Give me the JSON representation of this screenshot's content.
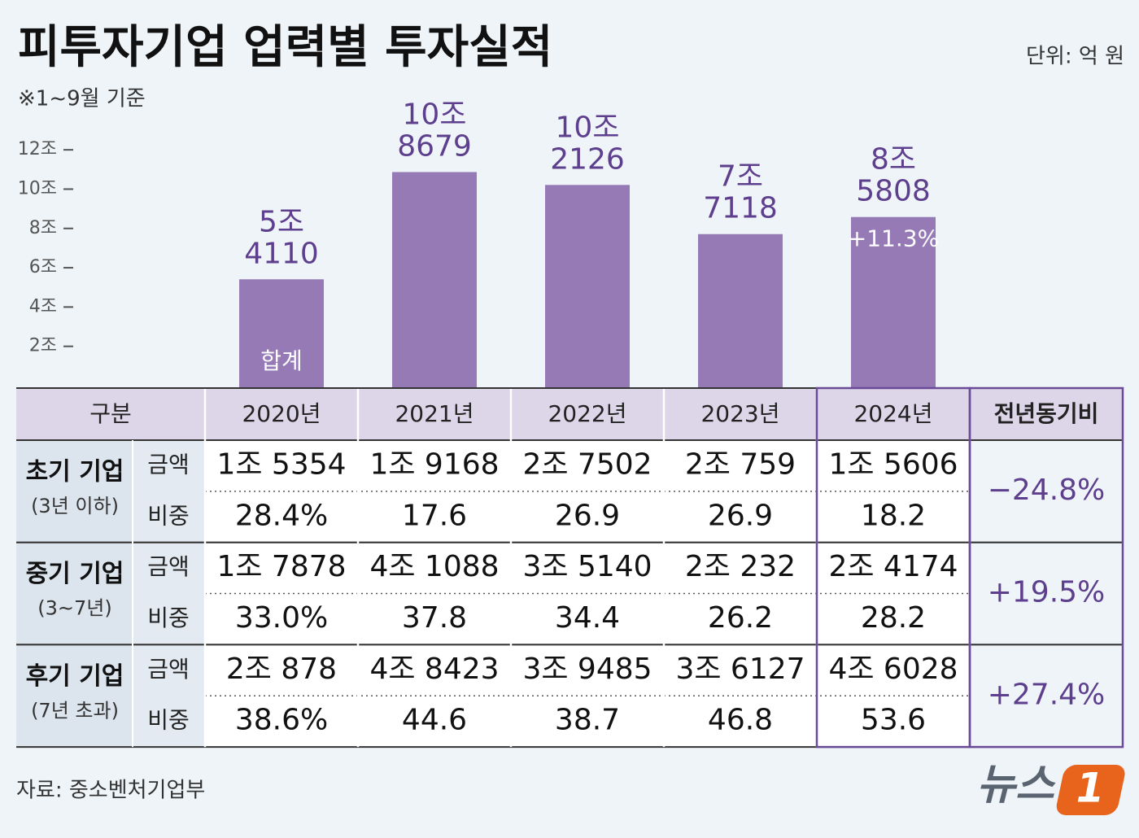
{
  "chart_data": {
    "type": "bar",
    "title": "피투자기업 업력별 투자실적",
    "unit": "단위: 억 원",
    "note": "※1~9월 기준",
    "categories": [
      "2020년",
      "2021년",
      "2022년",
      "2023년",
      "2024년"
    ],
    "values": [
      54110,
      108679,
      102126,
      77118,
      85808
    ],
    "value_labels": [
      [
        "5조",
        "4110"
      ],
      [
        "10조",
        "8679"
      ],
      [
        "10조",
        "2126"
      ],
      [
        "7조",
        "7118"
      ],
      [
        "8조",
        "5808"
      ]
    ],
    "color": "#957ab6",
    "ylim": [
      0,
      130000
    ],
    "yticks": [
      {
        "value": 20000,
        "label": "2조"
      },
      {
        "value": 40000,
        "label": "4조"
      },
      {
        "value": 60000,
        "label": "6조"
      },
      {
        "value": 80000,
        "label": "8조"
      },
      {
        "value": 100000,
        "label": "10조"
      },
      {
        "value": 120000,
        "label": "12조"
      }
    ],
    "annotations": {
      "total_label": "합계",
      "change_label": "+11.3%"
    }
  },
  "table": {
    "header": {
      "first": "구분",
      "last": "전년동기비"
    },
    "groups": [
      {
        "name": "초기 기업",
        "sub": "(3년 이하)",
        "change": "−24.8%",
        "rows": [
          {
            "label": "금액",
            "cells": [
              "1조 5354",
              "1조 9168",
              "2조 7502",
              "2조 759",
              "1조 5606"
            ]
          },
          {
            "label": "비중",
            "cells": [
              "28.4%",
              "17.6",
              "26.9",
              "26.9",
              "18.2"
            ]
          }
        ]
      },
      {
        "name": "중기 기업",
        "sub": "(3~7년)",
        "change": "+19.5%",
        "rows": [
          {
            "label": "금액",
            "cells": [
              "1조 7878",
              "4조 1088",
              "3조 5140",
              "2조 232",
              "2조 4174"
            ]
          },
          {
            "label": "비중",
            "cells": [
              "33.0%",
              "37.8",
              "34.4",
              "26.2",
              "28.2"
            ]
          }
        ]
      },
      {
        "name": "후기 기업",
        "sub": "(7년 초과)",
        "change": "+27.4%",
        "rows": [
          {
            "label": "금액",
            "cells": [
              "2조 878",
              "4조 8423",
              "3조 9485",
              "3조 6127",
              "4조 6028"
            ]
          },
          {
            "label": "비중",
            "cells": [
              "38.6%",
              "44.6",
              "38.7",
              "46.8",
              "53.6"
            ]
          }
        ]
      }
    ]
  },
  "footer": {
    "source": "자료: 중소벤처기업부",
    "brand": "뉴스",
    "badge": "1"
  }
}
